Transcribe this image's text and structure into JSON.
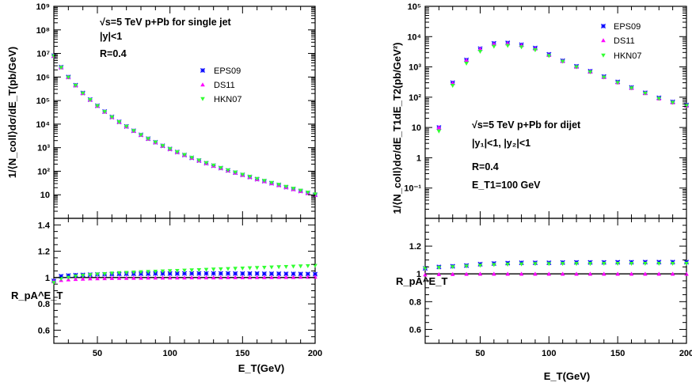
{
  "colors": {
    "EPS09": "#0000ff",
    "DS11": "#ff00ff",
    "HKN07": "#33ff33",
    "unity_line": "#000000"
  },
  "chart_data": [
    {
      "id": "left-top",
      "type": "scatter",
      "ylabel": "1/⟨N_coll⟩dσ/dE_T(pb/GeV)",
      "annotations": [
        "√s=5 TeV  p+Pb for single jet",
        "|y|<1",
        "R=0.4"
      ],
      "xlim": [
        20,
        200
      ],
      "ylim": [
        1,
        1000000000
      ],
      "yscale": "log",
      "yticklabels": [
        "10",
        "10²",
        "10³",
        "10⁴",
        "10⁵",
        "10⁶",
        "10⁷",
        "10⁸",
        "10⁹"
      ],
      "legend": [
        "EPS09",
        "DS11",
        "HKN07"
      ],
      "legend_position": "top-right",
      "x": [
        20,
        25,
        30,
        35,
        40,
        45,
        50,
        55,
        60,
        65,
        70,
        75,
        80,
        85,
        90,
        95,
        100,
        105,
        110,
        115,
        120,
        125,
        130,
        135,
        140,
        145,
        150,
        155,
        160,
        165,
        170,
        175,
        180,
        185,
        190,
        195,
        200
      ],
      "series": [
        {
          "name": "EPS09",
          "values": [
            8000000,
            2600000,
            1000000,
            450000,
            210000,
            110000,
            60000,
            34000,
            20000,
            12500,
            8000,
            5200,
            3500,
            2400,
            1700,
            1200,
            880,
            650,
            490,
            370,
            285,
            220,
            172,
            136,
            108,
            87,
            70,
            57,
            46,
            38,
            31,
            26,
            21,
            17.5,
            14.5,
            12,
            10
          ]
        },
        {
          "name": "DS11",
          "values": [
            7900000,
            2550000,
            980000,
            440000,
            205000,
            108000,
            59000,
            33500,
            19700,
            12300,
            7900,
            5150,
            3460,
            2380,
            1680,
            1190,
            870,
            640,
            485,
            365,
            282,
            218,
            170,
            134,
            107,
            86,
            69,
            56,
            45.5,
            37.5,
            30.5,
            25.5,
            20.7,
            17.2,
            14.2,
            11.8,
            9.8
          ]
        },
        {
          "name": "HKN07",
          "values": [
            7700000,
            2500000,
            960000,
            435000,
            203000,
            107000,
            58500,
            33200,
            19600,
            12250,
            7880,
            5140,
            3460,
            2380,
            1690,
            1200,
            880,
            650,
            495,
            375,
            290,
            225,
            176,
            139,
            111,
            90,
            72,
            59,
            48,
            39.5,
            32.5,
            27,
            22,
            18.3,
            15.2,
            12.6,
            10.5
          ]
        }
      ]
    },
    {
      "id": "left-bottom",
      "type": "scatter",
      "ylabel": "R_pA^E_T",
      "xlabel": "E_T(GeV)",
      "xlim": [
        20,
        200
      ],
      "ylim": [
        0.5,
        1.45
      ],
      "yticks": [
        0.6,
        0.8,
        1,
        1.2,
        1.4
      ],
      "yticklabels": [
        "0.6",
        "0.8",
        "1",
        "1.2",
        "1.4"
      ],
      "xticks": [
        50,
        100,
        150,
        200
      ],
      "xticklabels": [
        "50",
        "100",
        "150",
        "200"
      ],
      "reference_line": 1,
      "x": [
        20,
        25,
        30,
        35,
        40,
        45,
        50,
        55,
        60,
        65,
        70,
        75,
        80,
        85,
        90,
        95,
        100,
        105,
        110,
        115,
        120,
        125,
        130,
        135,
        140,
        145,
        150,
        155,
        160,
        165,
        170,
        175,
        180,
        185,
        190,
        195,
        200
      ],
      "series": [
        {
          "name": "EPS09",
          "values": [
            0.975,
            1.01,
            1.015,
            1.018,
            1.02,
            1.022,
            1.024,
            1.025,
            1.026,
            1.027,
            1.028,
            1.028,
            1.029,
            1.029,
            1.03,
            1.03,
            1.03,
            1.03,
            1.031,
            1.031,
            1.031,
            1.031,
            1.031,
            1.031,
            1.031,
            1.03,
            1.03,
            1.03,
            1.03,
            1.029,
            1.029,
            1.029,
            1.028,
            1.028,
            1.027,
            1.027,
            1.026
          ]
        },
        {
          "name": "DS11",
          "values": [
            0.97,
            0.98,
            0.985,
            0.988,
            0.99,
            0.992,
            0.993,
            0.994,
            0.995,
            0.996,
            0.996,
            0.997,
            0.997,
            0.998,
            0.998,
            0.998,
            0.999,
            0.999,
            0.999,
            1.0,
            1.0,
            1.0,
            1.0,
            1.0,
            1.001,
            1.001,
            1.001,
            1.001,
            1.002,
            1.002,
            1.002,
            1.003,
            1.003,
            1.003,
            1.004,
            1.004,
            1.005
          ]
        },
        {
          "name": "HKN07",
          "values": [
            0.96,
            0.99,
            1.0,
            1.01,
            1.015,
            1.02,
            1.025,
            1.028,
            1.032,
            1.035,
            1.037,
            1.04,
            1.042,
            1.044,
            1.046,
            1.048,
            1.05,
            1.052,
            1.054,
            1.056,
            1.058,
            1.06,
            1.062,
            1.064,
            1.066,
            1.068,
            1.07,
            1.072,
            1.074,
            1.076,
            1.078,
            1.08,
            1.082,
            1.084,
            1.086,
            1.088,
            1.09
          ]
        }
      ]
    },
    {
      "id": "right-top",
      "type": "scatter",
      "ylabel": "1/⟨N_coll⟩dσ/dE_T1dE_T2(pb/GeV²)",
      "annotations": [
        "√s=5 TeV  p+Pb for dijet",
        "|y₁|<1, |y₂|<1",
        "R=0.4",
        "E_T1=100 GeV"
      ],
      "xlim": [
        10,
        200
      ],
      "ylim": [
        0.01,
        100000
      ],
      "yscale": "log",
      "yticklabels": [
        "10⁻¹",
        "1",
        "10",
        "10²",
        "10³",
        "10⁴",
        "10⁵"
      ],
      "legend": [
        "EPS09",
        "DS11",
        "HKN07"
      ],
      "legend_position": "top-right",
      "x": [
        20,
        30,
        40,
        50,
        60,
        70,
        80,
        90,
        100,
        110,
        120,
        130,
        140,
        150,
        160,
        170,
        180,
        190,
        200
      ],
      "series": [
        {
          "name": "EPS09",
          "values": [
            10,
            300,
            1700,
            4000,
            6000,
            6200,
            5400,
            4200,
            2600,
            1600,
            1050,
            720,
            480,
            320,
            210,
            140,
            95,
            70,
            55
          ]
        },
        {
          "name": "DS11",
          "values": [
            10,
            290,
            1650,
            3900,
            5700,
            5900,
            5200,
            4000,
            2450,
            1550,
            1000,
            690,
            460,
            305,
            200,
            135,
            90,
            67,
            52
          ]
        },
        {
          "name": "HKN07",
          "values": [
            7.5,
            240,
            1300,
            3200,
            4700,
            5000,
            4500,
            3600,
            2300,
            1500,
            980,
            670,
            450,
            300,
            198,
            133,
            89,
            66,
            52
          ]
        }
      ]
    },
    {
      "id": "right-bottom",
      "type": "scatter",
      "ylabel": "R_pA^E_T",
      "xlabel": "E_T(GeV)",
      "xlim": [
        10,
        200
      ],
      "ylim": [
        0.5,
        1.4
      ],
      "yticks": [
        0.6,
        0.8,
        1,
        1.2
      ],
      "yticklabels": [
        "0.6",
        "0.8",
        "1",
        "1.2"
      ],
      "xticks": [
        50,
        100,
        150,
        200
      ],
      "xticklabels": [
        "50",
        "100",
        "150",
        "200"
      ],
      "reference_line": 1,
      "x": [
        10,
        20,
        30,
        40,
        50,
        60,
        70,
        80,
        90,
        100,
        110,
        120,
        130,
        140,
        150,
        160,
        170,
        180,
        190,
        200
      ],
      "series": [
        {
          "name": "EPS09",
          "values": [
            1.04,
            1.05,
            1.055,
            1.06,
            1.07,
            1.075,
            1.078,
            1.08,
            1.08,
            1.08,
            1.082,
            1.083,
            1.083,
            1.083,
            1.084,
            1.084,
            1.085,
            1.085,
            1.085,
            1.085
          ]
        },
        {
          "name": "DS11",
          "values": [
            0.995,
            0.997,
            0.998,
            0.999,
            1.0,
            1.0,
            1.0,
            1.0,
            1.0,
            1.0,
            1.0,
            1.0,
            1.0,
            1.0,
            1.0,
            1.0,
            1.0,
            1.0,
            1.0,
            1.0
          ]
        },
        {
          "name": "HKN07",
          "values": [
            1.04,
            1.045,
            1.05,
            1.055,
            1.06,
            1.065,
            1.068,
            1.07,
            1.072,
            1.072,
            1.073,
            1.073,
            1.073,
            1.074,
            1.074,
            1.074,
            1.074,
            1.074,
            1.074,
            1.074
          ]
        }
      ]
    }
  ]
}
